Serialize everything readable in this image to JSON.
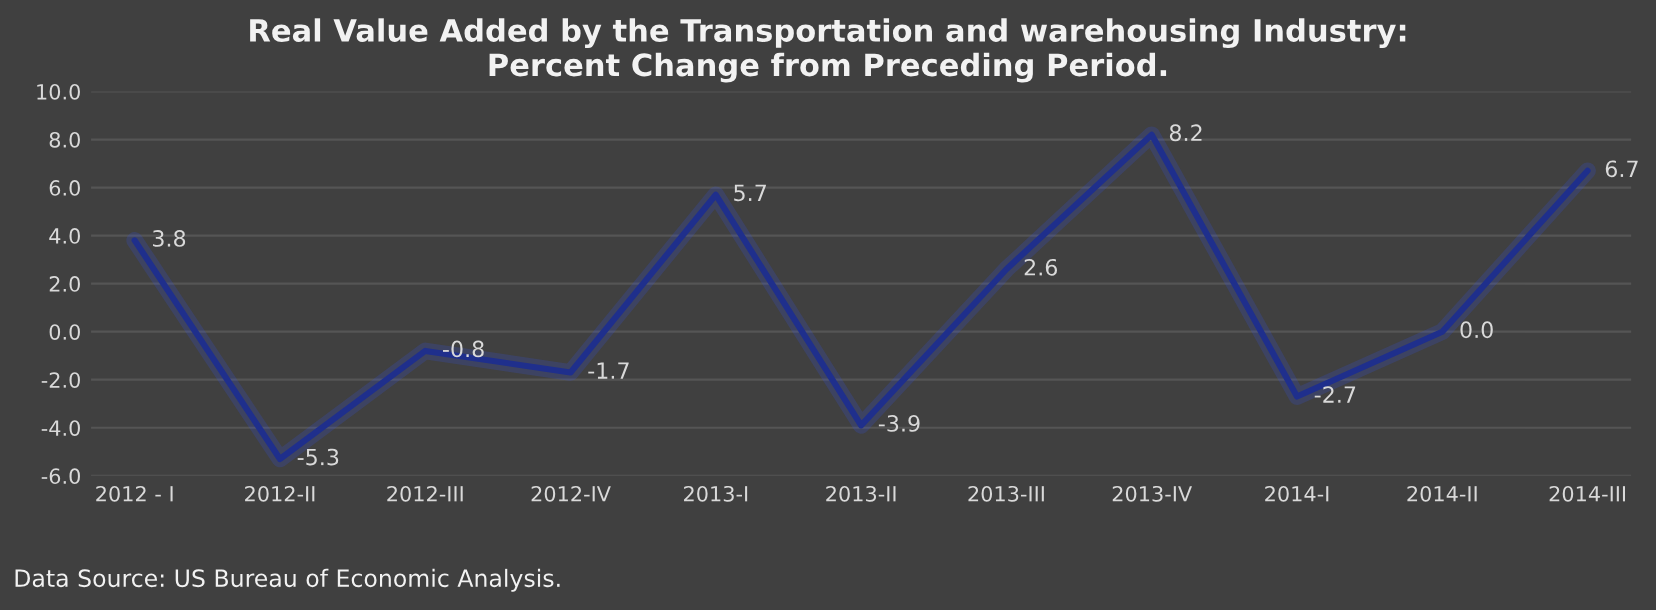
{
  "chart_data": {
    "type": "line",
    "title": "Real Value Added by the Transportation and warehousing Industry:\nPercent Change from Preceding Period.",
    "categories": [
      "2012 - I",
      "2012-II",
      "2012-III",
      "2012-IV",
      "2013-I",
      "2013-II",
      "2013-III",
      "2013-IV",
      "2014-I",
      "2014-II",
      "2014-III"
    ],
    "series": [
      {
        "color": "#1f2f8c",
        "values": [
          3.8,
          -5.3,
          -0.8,
          -1.7,
          5.7,
          -3.9,
          2.6,
          8.2,
          -2.7,
          0.0,
          6.7
        ],
        "value_labels": [
          "3.8",
          "-5.3",
          "-0.8",
          "-1.7",
          "5.7",
          "-3.9",
          "2.6",
          "8.2",
          "-2.7",
          "0.0",
          "6.7"
        ]
      }
    ],
    "ylim": [
      -6,
      10
    ],
    "yticks": [
      {
        "value": -6,
        "label": "-6.0"
      },
      {
        "value": -4,
        "label": "-4.0"
      },
      {
        "value": -2,
        "label": "-2.0"
      },
      {
        "value": 0,
        "label": "0.0"
      },
      {
        "value": 2,
        "label": "2.0"
      },
      {
        "value": 4,
        "label": "4.0"
      },
      {
        "value": 6,
        "label": "6.0"
      },
      {
        "value": 8,
        "label": "8.0"
      },
      {
        "value": 10,
        "label": "10.0"
      }
    ],
    "grid": "y",
    "legend": false,
    "marker": "none",
    "line_style": "solid",
    "annotations": [
      "Data Source: US Bureau of Economic Analysis."
    ]
  }
}
